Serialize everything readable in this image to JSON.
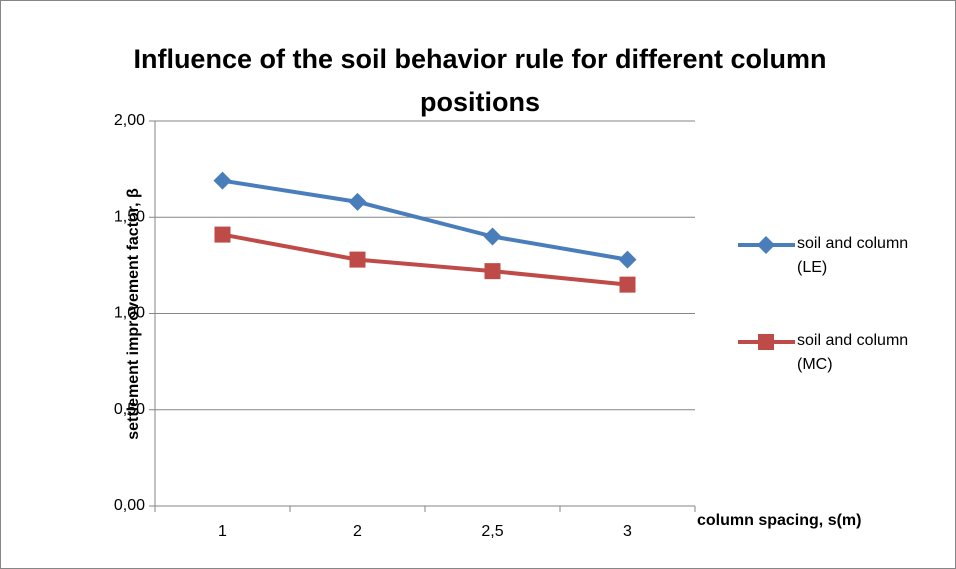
{
  "chart_data": {
    "type": "line",
    "title": "Influence of the soil behavior rule for different column positions",
    "x_label": "column spacing, s(m)",
    "y_label": "settlement improvement factor, β",
    "categories": [
      "1",
      "2",
      "2,5",
      "3"
    ],
    "series": [
      {
        "name": "soil and column (LE)",
        "color": "#4a7ebb",
        "marker": "diamond",
        "values": [
          1.69,
          1.58,
          1.4,
          1.28
        ]
      },
      {
        "name": "soil and column (MC)",
        "color": "#be4b48",
        "marker": "square",
        "values": [
          1.41,
          1.28,
          1.22,
          1.15
        ]
      }
    ],
    "ylim": [
      0,
      2
    ],
    "yticks": [
      {
        "value": 0,
        "label": "0,00"
      },
      {
        "value": 0.5,
        "label": "0,50"
      },
      {
        "value": 1,
        "label": "1,00"
      },
      {
        "value": 1.5,
        "label": "1,50"
      },
      {
        "value": 2,
        "label": "2,00"
      }
    ],
    "grid": true,
    "legend": "right"
  }
}
